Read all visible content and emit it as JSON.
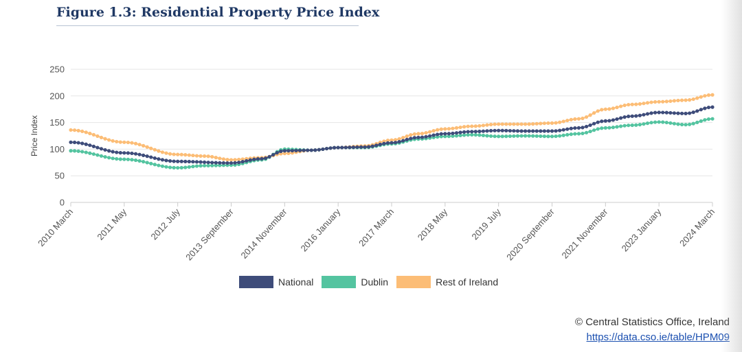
{
  "figure": {
    "title": "Figure 1.3: Residential Property Price Index"
  },
  "footer": {
    "copyright": "© Central Statistics Office, Ireland",
    "link": "https://data.cso.ie/table/HPM09"
  },
  "colors": {
    "national": "#3e4c7a",
    "dublin": "#54c4a0",
    "rest": "#fcbd76",
    "grid": "#e6e6e6",
    "axis": "#cccccc"
  },
  "chart_data": {
    "type": "line",
    "title": "Figure 1.3: Residential Property Price Index",
    "xlabel": "",
    "ylabel": "Price Index",
    "ylim": [
      0,
      250
    ],
    "yticks": [
      0,
      50,
      100,
      150,
      200,
      250
    ],
    "x_start": "2010 March",
    "x_end": "2024 March",
    "n_points": 169,
    "x_tick_labels": [
      "2010 March",
      "2011 May",
      "2012 July",
      "2013 September",
      "2014 November",
      "2016 January",
      "2017 March",
      "2018 May",
      "2019 July",
      "2020 September",
      "2021 November",
      "2023 January",
      "2024 March"
    ],
    "x_tick_indices": [
      0,
      14,
      28,
      42,
      56,
      70,
      84,
      98,
      112,
      126,
      140,
      154,
      168
    ],
    "legend": "bottom-center",
    "series": [
      {
        "key": "national",
        "name": "National",
        "anchors": [
          [
            0,
            113
          ],
          [
            14,
            93
          ],
          [
            28,
            77
          ],
          [
            42,
            74
          ],
          [
            50,
            82
          ],
          [
            56,
            97
          ],
          [
            63,
            98
          ],
          [
            70,
            103
          ],
          [
            77,
            104
          ],
          [
            84,
            112
          ],
          [
            91,
            122
          ],
          [
            98,
            129
          ],
          [
            105,
            133
          ],
          [
            112,
            135
          ],
          [
            119,
            134
          ],
          [
            126,
            134
          ],
          [
            133,
            140
          ],
          [
            140,
            153
          ],
          [
            147,
            162
          ],
          [
            154,
            169
          ],
          [
            161,
            167
          ],
          [
            168,
            179
          ]
        ]
      },
      {
        "key": "dublin",
        "name": "Dublin",
        "anchors": [
          [
            0,
            97
          ],
          [
            14,
            81
          ],
          [
            28,
            65
          ],
          [
            35,
            69
          ],
          [
            42,
            70
          ],
          [
            50,
            80
          ],
          [
            56,
            100
          ],
          [
            63,
            98
          ],
          [
            70,
            103
          ],
          [
            77,
            103
          ],
          [
            84,
            110
          ],
          [
            91,
            119
          ],
          [
            98,
            124
          ],
          [
            105,
            127
          ],
          [
            112,
            124
          ],
          [
            119,
            125
          ],
          [
            126,
            124
          ],
          [
            133,
            129
          ],
          [
            140,
            140
          ],
          [
            147,
            145
          ],
          [
            154,
            151
          ],
          [
            161,
            146
          ],
          [
            168,
            157
          ]
        ]
      },
      {
        "key": "rest",
        "name": "Rest of Ireland",
        "anchors": [
          [
            0,
            136
          ],
          [
            14,
            113
          ],
          [
            28,
            90
          ],
          [
            35,
            87
          ],
          [
            42,
            80
          ],
          [
            50,
            84
          ],
          [
            56,
            92
          ],
          [
            63,
            98
          ],
          [
            70,
            103
          ],
          [
            77,
            106
          ],
          [
            84,
            117
          ],
          [
            91,
            129
          ],
          [
            98,
            138
          ],
          [
            105,
            143
          ],
          [
            112,
            147
          ],
          [
            119,
            147
          ],
          [
            126,
            149
          ],
          [
            133,
            157
          ],
          [
            140,
            175
          ],
          [
            147,
            184
          ],
          [
            154,
            189
          ],
          [
            161,
            192
          ],
          [
            168,
            202
          ]
        ]
      }
    ]
  }
}
